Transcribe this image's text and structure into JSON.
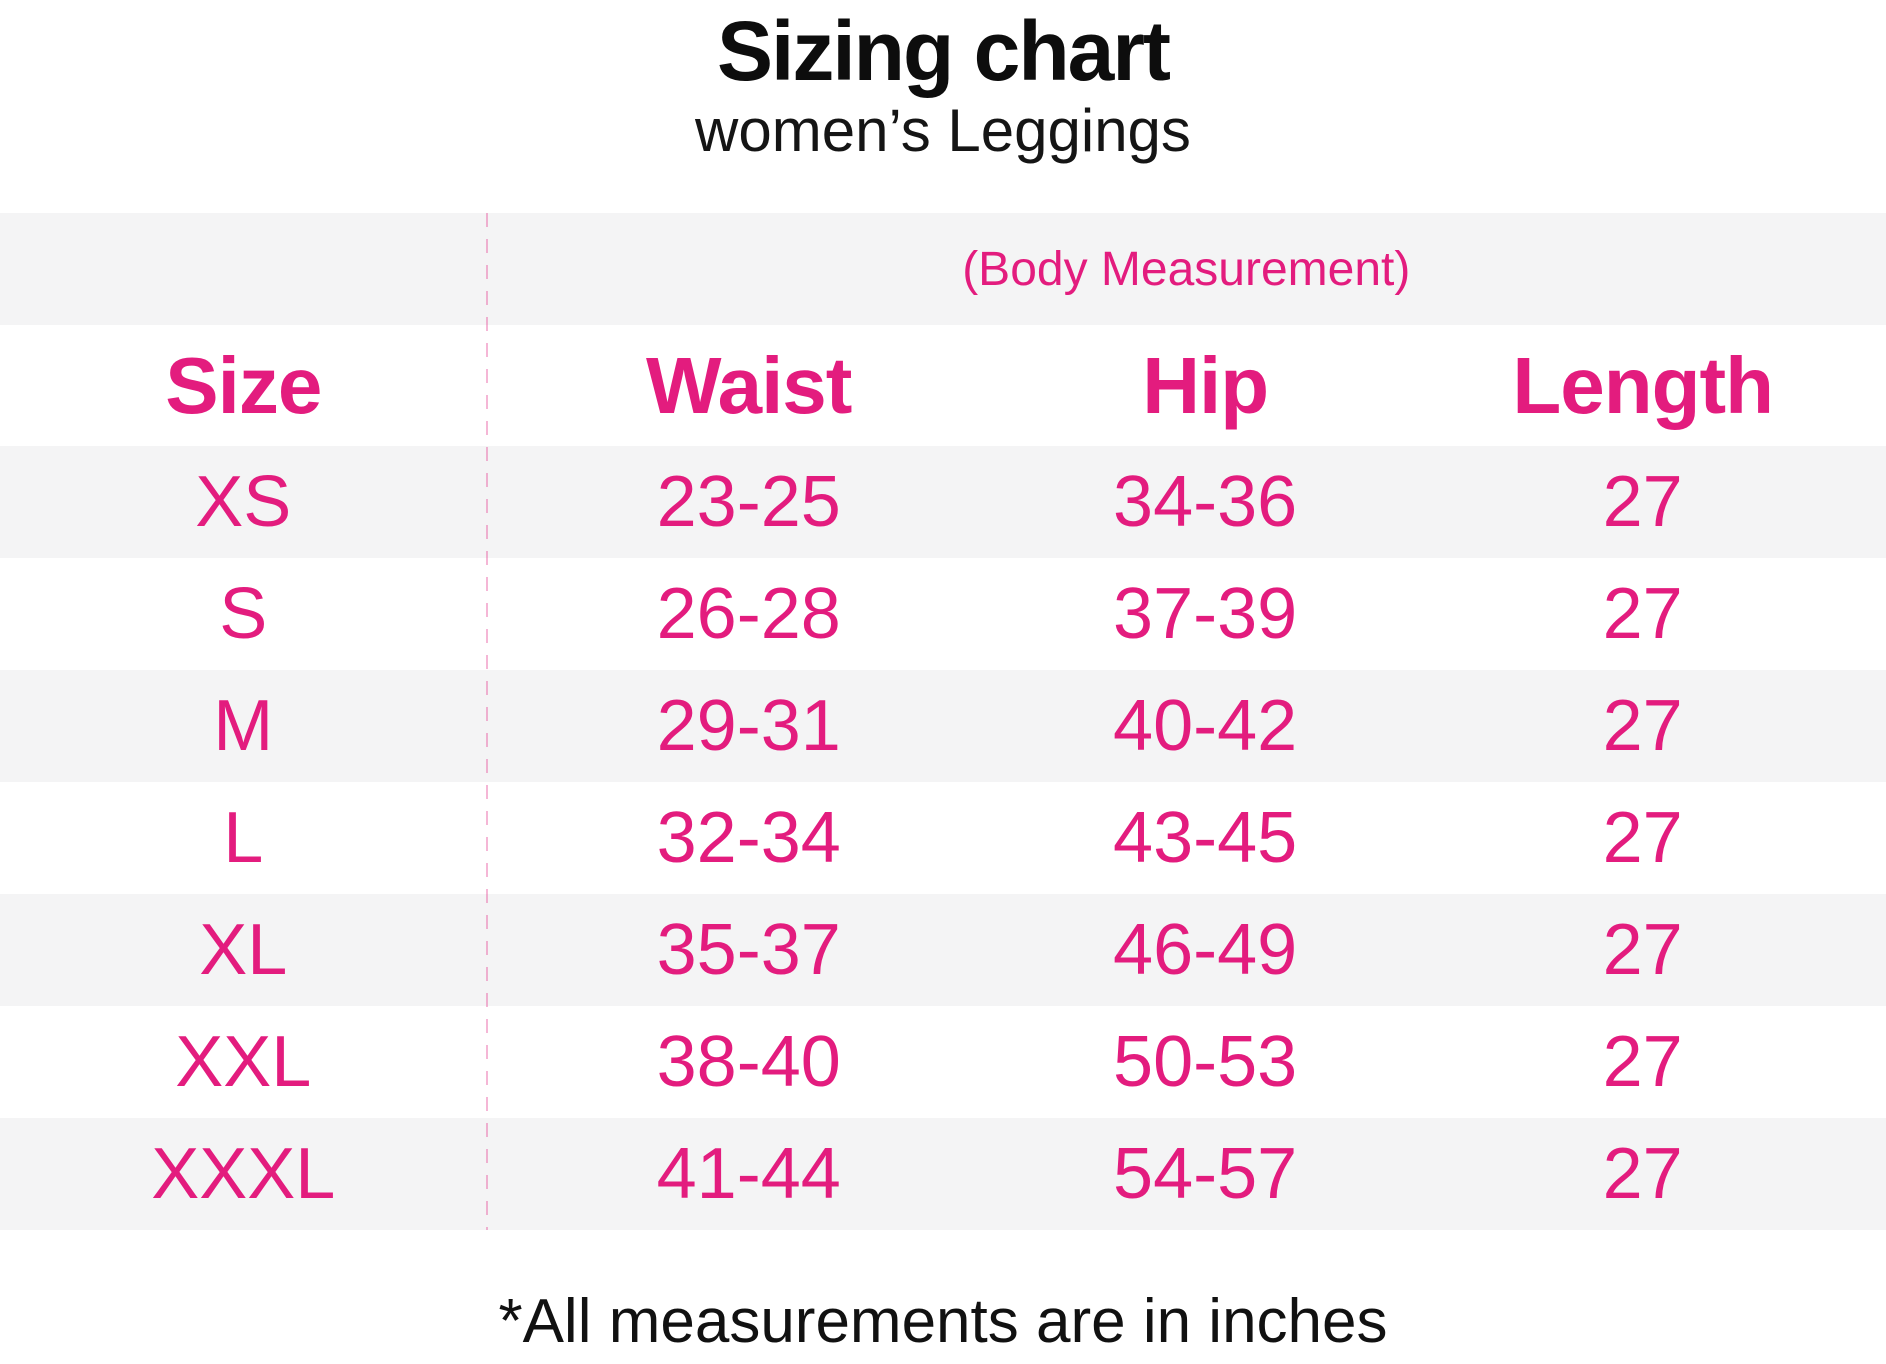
{
  "colors": {
    "accent_pink": "#e31c7e",
    "row_stripe_gray": "#f4f4f5",
    "divider_pink": "rgba(224,30,126,0.32)",
    "title_black": "#0d0d0d"
  },
  "chart_data": {
    "type": "table",
    "title": "Sizing chart",
    "subtitle": "women’s Leggings",
    "group_header": "(Body Measurement)",
    "columns": [
      "Size",
      "Waist",
      "Hip",
      "Length"
    ],
    "rows": [
      {
        "size": "XS",
        "waist": "23-25",
        "hip": "34-36",
        "length": "27"
      },
      {
        "size": "S",
        "waist": "26-28",
        "hip": "37-39",
        "length": "27"
      },
      {
        "size": "M",
        "waist": "29-31",
        "hip": "40-42",
        "length": "27"
      },
      {
        "size": "L",
        "waist": "32-34",
        "hip": "43-45",
        "length": "27"
      },
      {
        "size": "XL",
        "waist": "35-37",
        "hip": "46-49",
        "length": "27"
      },
      {
        "size": "XXL",
        "waist": "38-40",
        "hip": "50-53",
        "length": "27"
      },
      {
        "size": "XXXL",
        "waist": "41-44",
        "hip": "54-57",
        "length": "27"
      }
    ],
    "note": "*All measurements are in inches",
    "units": "inches",
    "layout": {
      "stripe_pattern": "alternating starting gray",
      "divider": "dashed vertical line after Size column"
    }
  }
}
